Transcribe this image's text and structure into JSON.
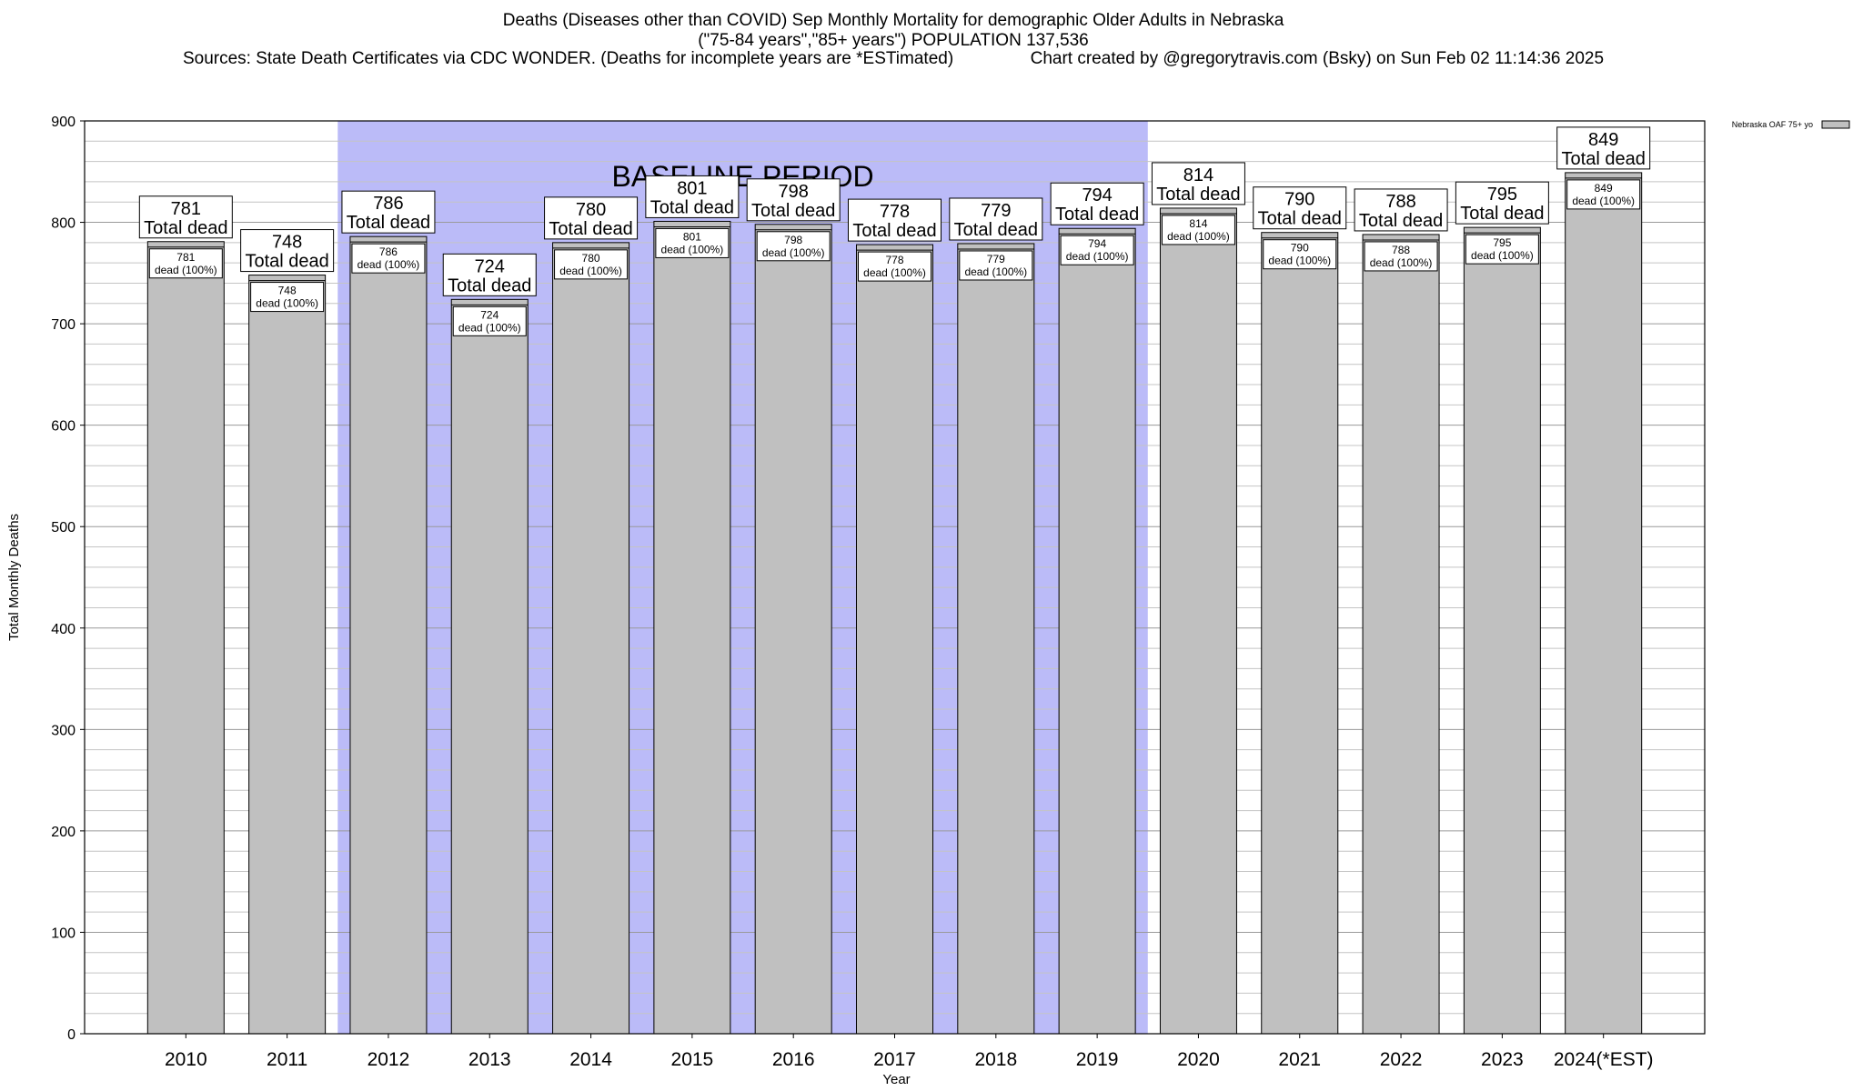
{
  "header": {
    "line1": "Deaths (Diseases other than COVID) Sep Monthly Mortality for demographic Older Adults in Nebraska",
    "line2": "(\"75-84 years\",\"85+ years\") POPULATION 137,536",
    "line3": "Sources: State Death Certificates via CDC WONDER. (Deaths for incomplete years are *ESTimated)                Chart created by @gregorytravis.com (Bsky) on Sun Feb 02 11:14:36 2025"
  },
  "chart_data": {
    "type": "bar",
    "xlabel": "Year",
    "ylabel": "Total Monthly Deaths",
    "ylim": [
      0,
      900
    ],
    "yticks": [
      0,
      100,
      200,
      300,
      400,
      500,
      600,
      700,
      800,
      900
    ],
    "grid": true,
    "categories": [
      "2010",
      "2011",
      "2012",
      "2013",
      "2014",
      "2015",
      "2016",
      "2017",
      "2018",
      "2019",
      "2020",
      "2021",
      "2022",
      "2023",
      "2024(*EST)"
    ],
    "series": [
      {
        "name": "Nebraska OAF 75+ yo",
        "values": [
          781,
          748,
          786,
          724,
          780,
          801,
          798,
          778,
          779,
          794,
          814,
          790,
          788,
          795,
          849
        ],
        "color": "#c0c0c0"
      }
    ],
    "top_label_suffix": "Total dead",
    "inner_label_suffix": "dead (100%)",
    "baseline_period": {
      "label": "BASELINE PERIOD",
      "from": "2012",
      "to": "2019",
      "color": "#bbbbf8"
    },
    "legend_position": "top-right"
  }
}
